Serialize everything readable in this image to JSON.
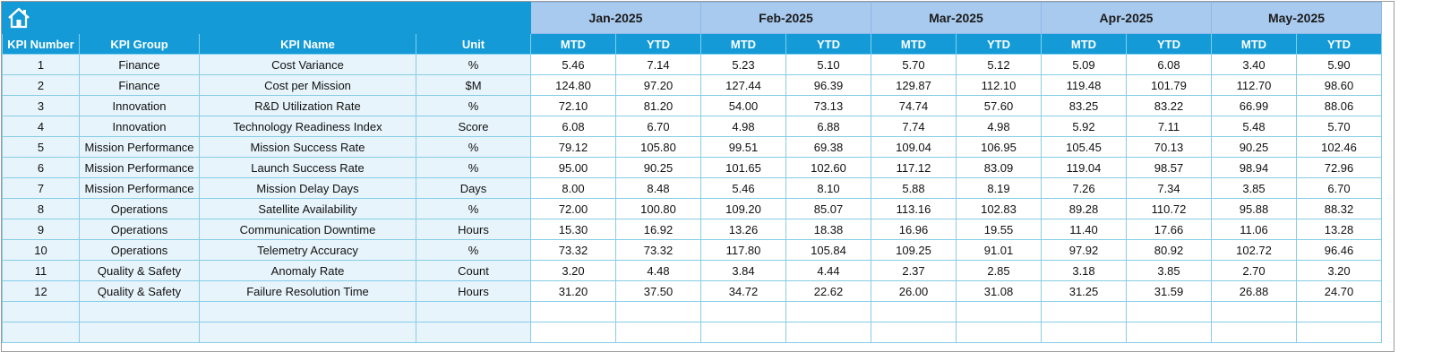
{
  "header": {
    "months": [
      "Jan-2025",
      "Feb-2025",
      "Mar-2025",
      "Apr-2025",
      "May-2025"
    ],
    "columns": [
      "KPI Number",
      "KPI Group",
      "KPI Name",
      "Unit"
    ],
    "subcolumns": [
      "MTD",
      "YTD"
    ]
  },
  "table": {
    "rows": [
      [
        1,
        "Finance",
        "Cost Variance",
        "%",
        "5.46",
        "7.14",
        "5.23",
        "5.10",
        "5.70",
        "5.12",
        "5.09",
        "6.08",
        "3.40",
        "5.90"
      ],
      [
        2,
        "Finance",
        "Cost per Mission",
        "$M",
        "124.80",
        "97.20",
        "127.44",
        "96.39",
        "129.87",
        "112.10",
        "119.48",
        "101.79",
        "112.70",
        "98.60"
      ],
      [
        3,
        "Innovation",
        "R&D Utilization Rate",
        "%",
        "72.10",
        "81.20",
        "54.00",
        "73.13",
        "74.74",
        "57.60",
        "83.25",
        "83.22",
        "66.99",
        "88.06"
      ],
      [
        4,
        "Innovation",
        "Technology Readiness Index",
        "Score",
        "6.08",
        "6.70",
        "4.98",
        "6.88",
        "7.74",
        "4.98",
        "5.92",
        "7.11",
        "5.48",
        "5.70"
      ],
      [
        5,
        "Mission Performance",
        "Mission Success Rate",
        "%",
        "79.12",
        "105.80",
        "99.51",
        "69.38",
        "109.04",
        "106.95",
        "105.45",
        "70.13",
        "90.25",
        "102.46"
      ],
      [
        6,
        "Mission Performance",
        "Launch Success Rate",
        "%",
        "95.00",
        "90.25",
        "101.65",
        "102.60",
        "117.12",
        "83.09",
        "119.04",
        "98.57",
        "98.94",
        "72.96"
      ],
      [
        7,
        "Mission Performance",
        "Mission Delay Days",
        "Days",
        "8.00",
        "8.48",
        "5.46",
        "8.10",
        "5.88",
        "8.19",
        "7.26",
        "7.34",
        "3.85",
        "6.70"
      ],
      [
        8,
        "Operations",
        "Satellite Availability",
        "%",
        "72.00",
        "100.80",
        "109.20",
        "85.07",
        "113.16",
        "102.83",
        "89.28",
        "110.72",
        "95.88",
        "88.32"
      ],
      [
        9,
        "Operations",
        "Communication Downtime",
        "Hours",
        "15.30",
        "16.92",
        "13.26",
        "18.38",
        "16.96",
        "19.55",
        "11.40",
        "17.66",
        "11.06",
        "13.28"
      ],
      [
        10,
        "Operations",
        "Telemetry Accuracy",
        "%",
        "73.32",
        "73.32",
        "117.80",
        "105.84",
        "109.25",
        "91.01",
        "97.92",
        "80.92",
        "102.72",
        "96.46"
      ],
      [
        11,
        "Quality & Safety",
        "Anomaly Rate",
        "Count",
        "3.20",
        "4.48",
        "3.84",
        "4.44",
        "2.37",
        "2.85",
        "3.18",
        "3.85",
        "2.70",
        "3.20"
      ],
      [
        12,
        "Quality & Safety",
        "Failure Resolution Time",
        "Hours",
        "31.20",
        "37.50",
        "34.72",
        "22.62",
        "26.00",
        "31.08",
        "31.25",
        "31.59",
        "26.88",
        "24.70"
      ]
    ]
  }
}
